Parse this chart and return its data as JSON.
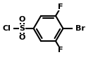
{
  "bg_color": "#ffffff",
  "bond_color": "#000000",
  "atom_colors": {
    "Cl": "#000000",
    "S": "#000000",
    "O": "#000000",
    "F": "#000000",
    "Br": "#000000"
  },
  "figsize": [
    1.22,
    0.82
  ],
  "dpi": 100
}
